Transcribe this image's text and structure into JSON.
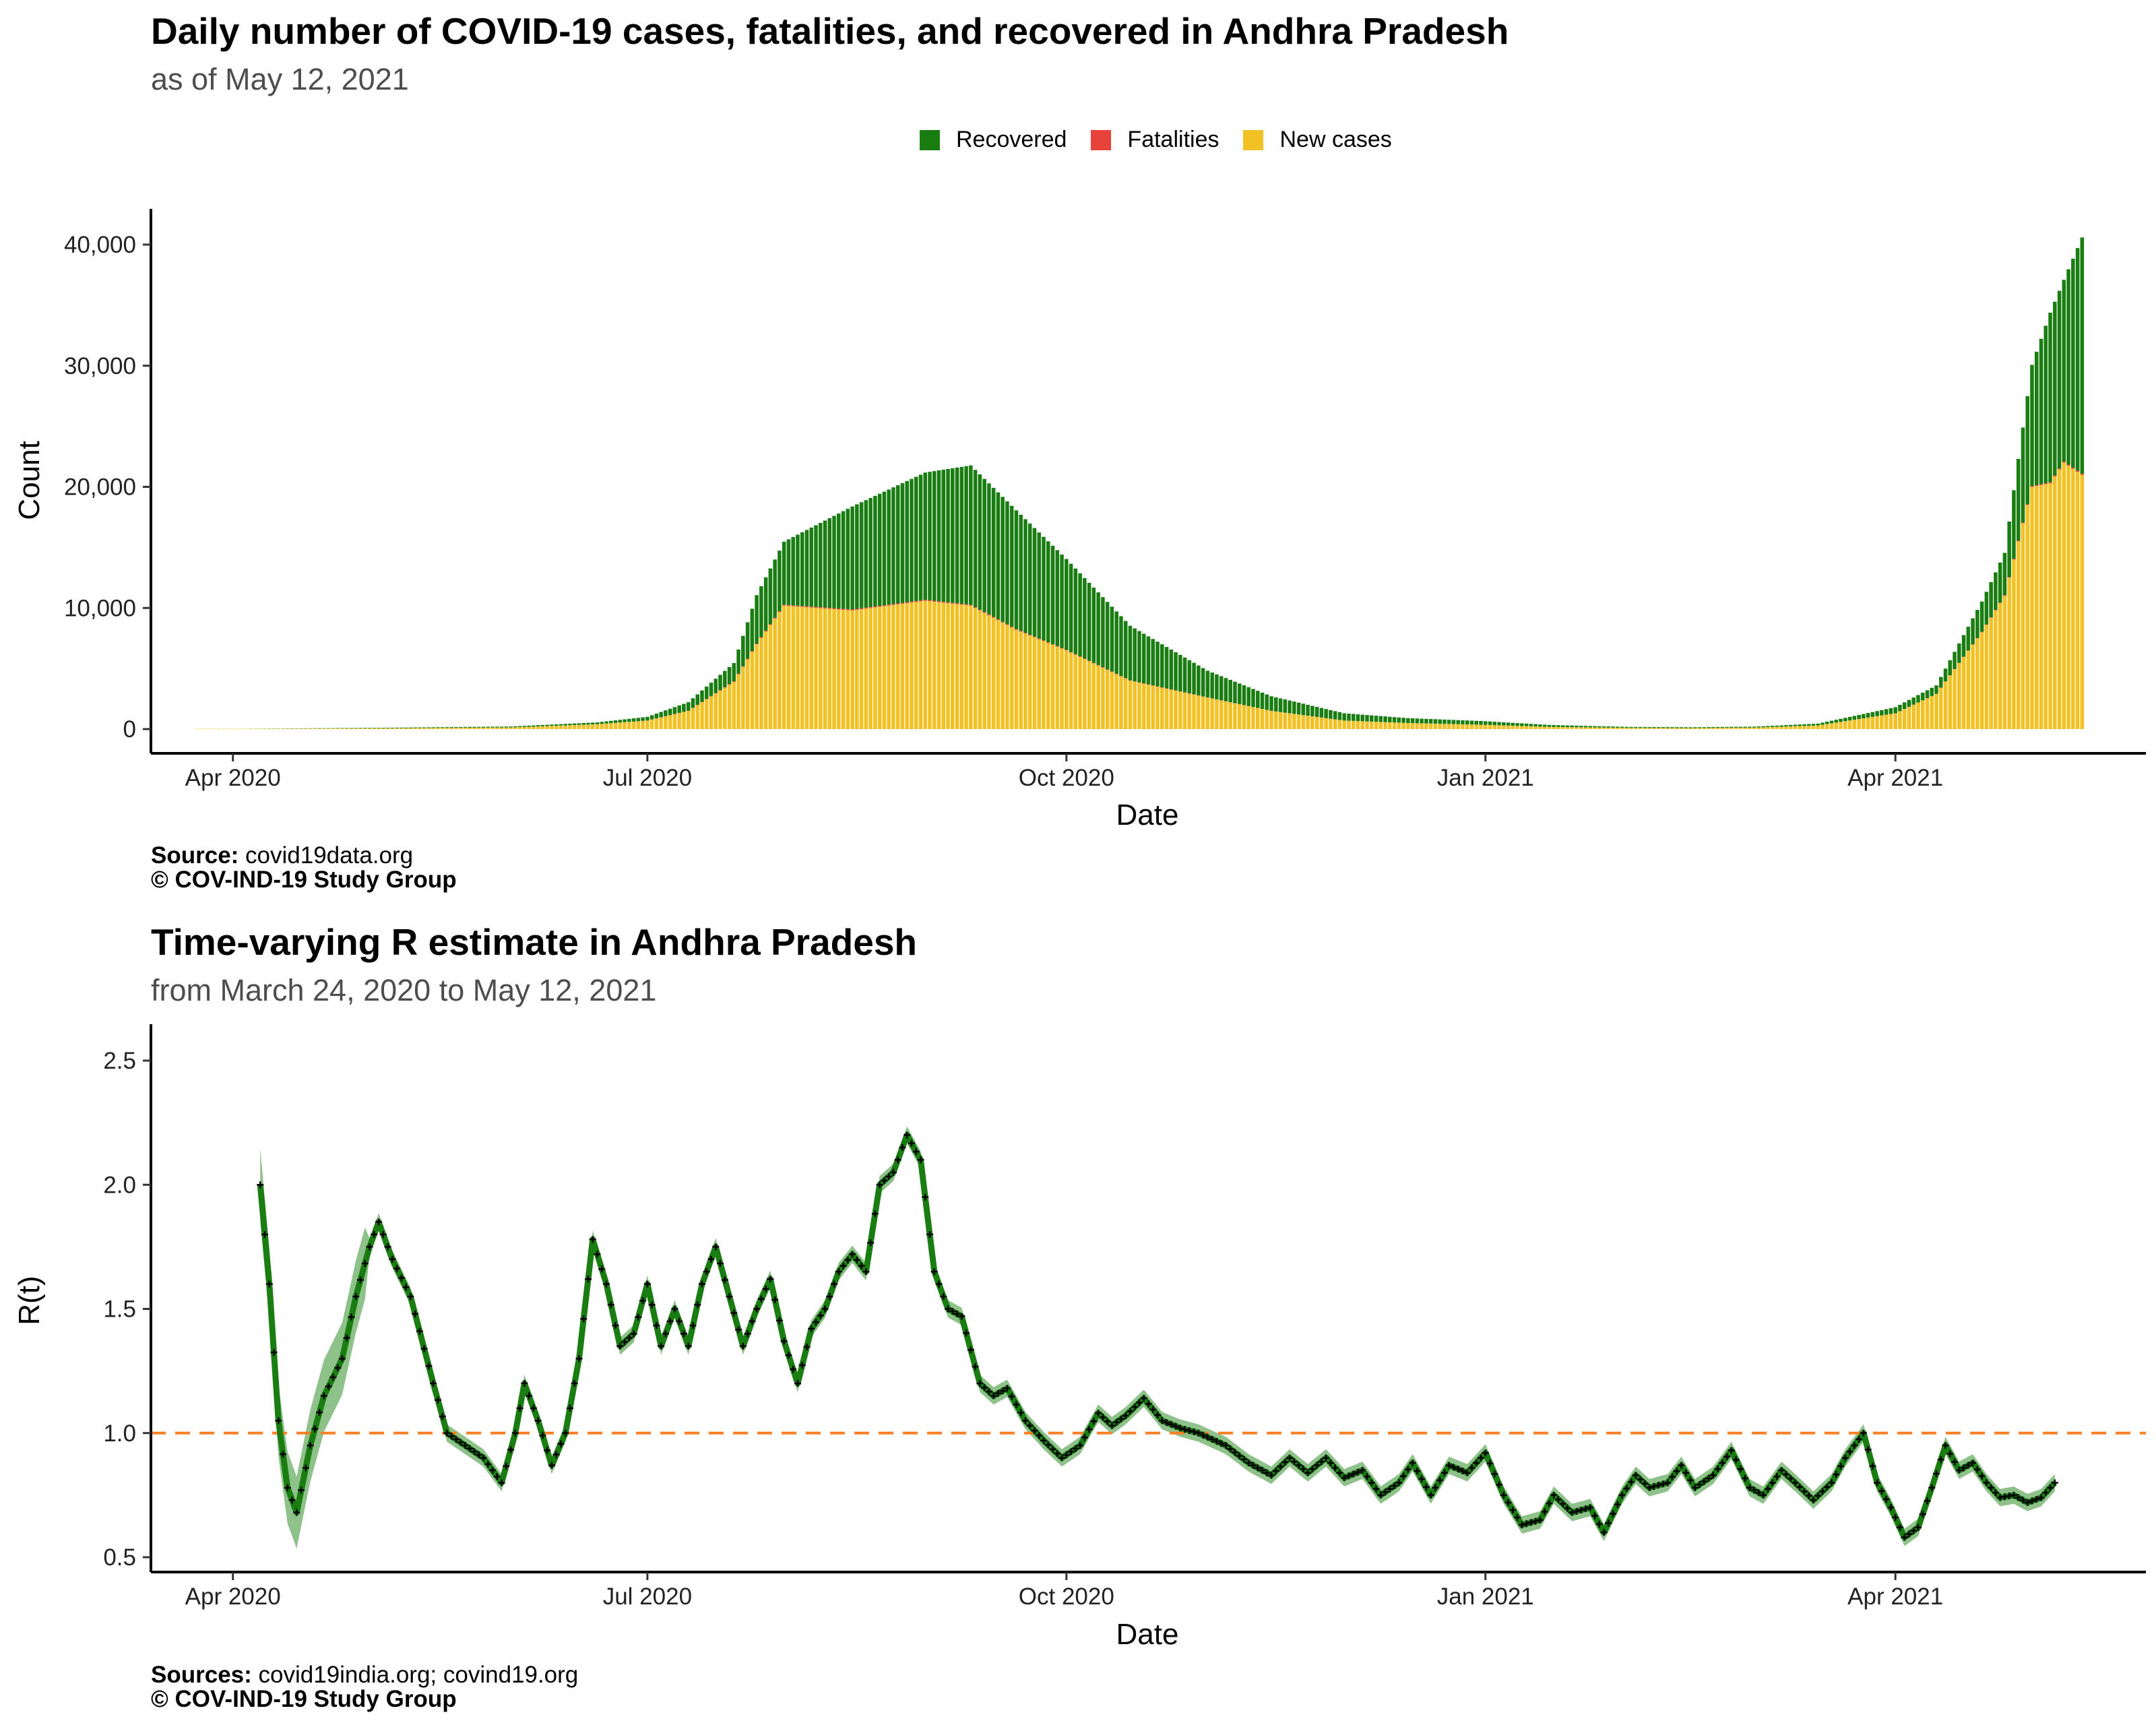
{
  "chart_data": [
    {
      "type": "bar",
      "stacked": true,
      "title": "Daily number of COVID-19 cases, fatalities, and recovered in Andhra Pradesh",
      "subtitle": "as of May 12, 2021",
      "xlabel": "Date",
      "ylabel": "Count",
      "ylim": [
        0,
        43000
      ],
      "x_range": [
        "2020-03-14",
        "2021-05-26"
      ],
      "x_ticks": [
        {
          "date": "2020-04-01",
          "label": "Apr 2020"
        },
        {
          "date": "2020-07-01",
          "label": "Jul 2020"
        },
        {
          "date": "2020-10-01",
          "label": "Oct 2020"
        },
        {
          "date": "2021-01-01",
          "label": "Jan 2021"
        },
        {
          "date": "2021-04-01",
          "label": "Apr 2021"
        }
      ],
      "y_ticks": [
        {
          "value": 0,
          "label": "0"
        },
        {
          "value": 10000,
          "label": "10,000"
        },
        {
          "value": 20000,
          "label": "20,000"
        },
        {
          "value": 30000,
          "label": "30,000"
        },
        {
          "value": 40000,
          "label": "40,000"
        }
      ],
      "grid": false,
      "legend_position": "top",
      "legend": [
        "Recovered",
        "Fatalities",
        "New cases"
      ],
      "colors": {
        "Recovered": "#1a7d12",
        "Fatalities": "#e8433a",
        "New cases": "#f2c124"
      },
      "series_key_points": [
        {
          "date": "2020-04-01",
          "new_cases": 20,
          "fatalities": 0,
          "recovered": 0
        },
        {
          "date": "2020-05-01",
          "new_cases": 60,
          "fatalities": 1,
          "recovered": 40
        },
        {
          "date": "2020-06-01",
          "new_cases": 130,
          "fatalities": 2,
          "recovered": 80
        },
        {
          "date": "2020-06-20",
          "new_cases": 400,
          "fatalities": 5,
          "recovered": 150
        },
        {
          "date": "2020-07-01",
          "new_cases": 700,
          "fatalities": 10,
          "recovered": 300
        },
        {
          "date": "2020-07-10",
          "new_cases": 1500,
          "fatalities": 20,
          "recovered": 700
        },
        {
          "date": "2020-07-20",
          "new_cases": 3900,
          "fatalities": 50,
          "recovered": 1500
        },
        {
          "date": "2020-07-25",
          "new_cases": 7000,
          "fatalities": 60,
          "recovered": 4000
        },
        {
          "date": "2020-07-31",
          "new_cases": 10200,
          "fatalities": 70,
          "recovered": 5200
        },
        {
          "date": "2020-08-15",
          "new_cases": 9800,
          "fatalities": 80,
          "recovered": 8500
        },
        {
          "date": "2020-08-31",
          "new_cases": 10600,
          "fatalities": 80,
          "recovered": 10500
        },
        {
          "date": "2020-09-10",
          "new_cases": 10200,
          "fatalities": 70,
          "recovered": 11500
        },
        {
          "date": "2020-09-20",
          "new_cases": 8200,
          "fatalities": 60,
          "recovered": 9800
        },
        {
          "date": "2020-10-01",
          "new_cases": 6500,
          "fatalities": 45,
          "recovered": 7500
        },
        {
          "date": "2020-10-15",
          "new_cases": 4000,
          "fatalities": 30,
          "recovered": 4500
        },
        {
          "date": "2020-11-01",
          "new_cases": 2600,
          "fatalities": 18,
          "recovered": 2200
        },
        {
          "date": "2020-11-15",
          "new_cases": 1500,
          "fatalities": 10,
          "recovered": 1200
        },
        {
          "date": "2020-12-01",
          "new_cases": 700,
          "fatalities": 5,
          "recovered": 600
        },
        {
          "date": "2020-12-15",
          "new_cases": 500,
          "fatalities": 3,
          "recovered": 400
        },
        {
          "date": "2021-01-01",
          "new_cases": 350,
          "fatalities": 2,
          "recovered": 300
        },
        {
          "date": "2021-01-15",
          "new_cases": 180,
          "fatalities": 1,
          "recovered": 160
        },
        {
          "date": "2021-02-01",
          "new_cases": 100,
          "fatalities": 1,
          "recovered": 80
        },
        {
          "date": "2021-02-15",
          "new_cases": 80,
          "fatalities": 0,
          "recovered": 70
        },
        {
          "date": "2021-03-01",
          "new_cases": 120,
          "fatalities": 0,
          "recovered": 80
        },
        {
          "date": "2021-03-15",
          "new_cases": 300,
          "fatalities": 1,
          "recovered": 150
        },
        {
          "date": "2021-04-01",
          "new_cases": 1300,
          "fatalities": 5,
          "recovered": 500
        },
        {
          "date": "2021-04-10",
          "new_cases": 2900,
          "fatalities": 10,
          "recovered": 700
        },
        {
          "date": "2021-04-20",
          "new_cases": 8000,
          "fatalities": 30,
          "recovered": 2500
        },
        {
          "date": "2021-04-25",
          "new_cases": 11000,
          "fatalities": 50,
          "recovered": 3500
        },
        {
          "date": "2021-05-01",
          "new_cases": 20000,
          "fatalities": 70,
          "recovered": 10000
        },
        {
          "date": "2021-05-05",
          "new_cases": 20300,
          "fatalities": 80,
          "recovered": 14000
        },
        {
          "date": "2021-05-08",
          "new_cases": 22000,
          "fatalities": 90,
          "recovered": 15000
        },
        {
          "date": "2021-05-12",
          "new_cases": 21000,
          "fatalities": 90,
          "recovered": 19500
        }
      ],
      "source_label": "Source:",
      "source_text": "covid19data.org",
      "copyright": "© COV-IND-19 Study Group"
    },
    {
      "type": "line",
      "title": "Time-varying R estimate in Andhra Pradesh",
      "subtitle": "from March 24, 2020 to May 12, 2021",
      "xlabel": "Date",
      "ylabel": "R(t)",
      "ylim": [
        0.44,
        2.6
      ],
      "x_range": [
        "2020-03-14",
        "2021-05-26"
      ],
      "x_ticks": [
        {
          "date": "2020-04-01",
          "label": "Apr 2020"
        },
        {
          "date": "2020-07-01",
          "label": "Jul 2020"
        },
        {
          "date": "2020-10-01",
          "label": "Oct 2020"
        },
        {
          "date": "2021-01-01",
          "label": "Jan 2021"
        },
        {
          "date": "2021-04-01",
          "label": "Apr 2021"
        }
      ],
      "y_ticks": [
        {
          "value": 0.5,
          "label": "0.5"
        },
        {
          "value": 1.0,
          "label": "1.0"
        },
        {
          "value": 1.5,
          "label": "1.5"
        },
        {
          "value": 2.0,
          "label": "2.0"
        },
        {
          "value": 2.5,
          "label": "2.5"
        }
      ],
      "reference_line": 1.0,
      "grid": false,
      "colors": {
        "line": "#1a7d12",
        "ribbon": "#8fc28a",
        "reference": "#ff7f24",
        "points": "#000000"
      },
      "series_key_points": [
        {
          "date": "2020-04-07",
          "r": 2.0
        },
        {
          "date": "2020-04-09",
          "r": 1.6
        },
        {
          "date": "2020-04-11",
          "r": 1.05
        },
        {
          "date": "2020-04-13",
          "r": 0.78
        },
        {
          "date": "2020-04-15",
          "r": 0.68
        },
        {
          "date": "2020-04-18",
          "r": 0.95
        },
        {
          "date": "2020-04-21",
          "r": 1.15
        },
        {
          "date": "2020-04-25",
          "r": 1.3
        },
        {
          "date": "2020-04-28",
          "r": 1.55
        },
        {
          "date": "2020-05-01",
          "r": 1.75
        },
        {
          "date": "2020-05-03",
          "r": 1.85
        },
        {
          "date": "2020-05-06",
          "r": 1.7
        },
        {
          "date": "2020-05-10",
          "r": 1.55
        },
        {
          "date": "2020-05-15",
          "r": 1.2
        },
        {
          "date": "2020-05-18",
          "r": 1.0
        },
        {
          "date": "2020-05-22",
          "r": 0.95
        },
        {
          "date": "2020-05-26",
          "r": 0.9
        },
        {
          "date": "2020-05-30",
          "r": 0.8
        },
        {
          "date": "2020-06-02",
          "r": 1.0
        },
        {
          "date": "2020-06-04",
          "r": 1.2
        },
        {
          "date": "2020-06-07",
          "r": 1.05
        },
        {
          "date": "2020-06-10",
          "r": 0.87
        },
        {
          "date": "2020-06-13",
          "r": 1.0
        },
        {
          "date": "2020-06-16",
          "r": 1.3
        },
        {
          "date": "2020-06-19",
          "r": 1.78
        },
        {
          "date": "2020-06-22",
          "r": 1.6
        },
        {
          "date": "2020-06-25",
          "r": 1.35
        },
        {
          "date": "2020-06-28",
          "r": 1.4
        },
        {
          "date": "2020-07-01",
          "r": 1.6
        },
        {
          "date": "2020-07-04",
          "r": 1.35
        },
        {
          "date": "2020-07-07",
          "r": 1.5
        },
        {
          "date": "2020-07-10",
          "r": 1.35
        },
        {
          "date": "2020-07-13",
          "r": 1.6
        },
        {
          "date": "2020-07-16",
          "r": 1.75
        },
        {
          "date": "2020-07-19",
          "r": 1.55
        },
        {
          "date": "2020-07-22",
          "r": 1.35
        },
        {
          "date": "2020-07-25",
          "r": 1.5
        },
        {
          "date": "2020-07-28",
          "r": 1.62
        },
        {
          "date": "2020-07-31",
          "r": 1.37
        },
        {
          "date": "2020-08-03",
          "r": 1.2
        },
        {
          "date": "2020-08-06",
          "r": 1.42
        },
        {
          "date": "2020-08-09",
          "r": 1.5
        },
        {
          "date": "2020-08-12",
          "r": 1.65
        },
        {
          "date": "2020-08-15",
          "r": 1.72
        },
        {
          "date": "2020-08-18",
          "r": 1.65
        },
        {
          "date": "2020-08-21",
          "r": 2.0
        },
        {
          "date": "2020-08-24",
          "r": 2.05
        },
        {
          "date": "2020-08-27",
          "r": 2.2
        },
        {
          "date": "2020-08-30",
          "r": 2.1
        },
        {
          "date": "2020-09-02",
          "r": 1.65
        },
        {
          "date": "2020-09-05",
          "r": 1.5
        },
        {
          "date": "2020-09-08",
          "r": 1.47
        },
        {
          "date": "2020-09-12",
          "r": 1.2
        },
        {
          "date": "2020-09-15",
          "r": 1.15
        },
        {
          "date": "2020-09-18",
          "r": 1.18
        },
        {
          "date": "2020-09-22",
          "r": 1.05
        },
        {
          "date": "2020-09-26",
          "r": 0.97
        },
        {
          "date": "2020-09-30",
          "r": 0.9
        },
        {
          "date": "2020-10-04",
          "r": 0.95
        },
        {
          "date": "2020-10-08",
          "r": 1.08
        },
        {
          "date": "2020-10-11",
          "r": 1.03
        },
        {
          "date": "2020-10-14",
          "r": 1.07
        },
        {
          "date": "2020-10-18",
          "r": 1.14
        },
        {
          "date": "2020-10-22",
          "r": 1.05
        },
        {
          "date": "2020-10-26",
          "r": 1.02
        },
        {
          "date": "2020-10-30",
          "r": 1.0
        },
        {
          "date": "2020-11-05",
          "r": 0.95
        },
        {
          "date": "2020-11-10",
          "r": 0.88
        },
        {
          "date": "2020-11-15",
          "r": 0.83
        },
        {
          "date": "2020-11-19",
          "r": 0.9
        },
        {
          "date": "2020-11-23",
          "r": 0.84
        },
        {
          "date": "2020-11-27",
          "r": 0.9
        },
        {
          "date": "2020-12-01",
          "r": 0.82
        },
        {
          "date": "2020-12-05",
          "r": 0.85
        },
        {
          "date": "2020-12-09",
          "r": 0.75
        },
        {
          "date": "2020-12-13",
          "r": 0.8
        },
        {
          "date": "2020-12-16",
          "r": 0.88
        },
        {
          "date": "2020-12-20",
          "r": 0.75
        },
        {
          "date": "2020-12-24",
          "r": 0.87
        },
        {
          "date": "2020-12-28",
          "r": 0.84
        },
        {
          "date": "2021-01-01",
          "r": 0.92
        },
        {
          "date": "2021-01-05",
          "r": 0.75
        },
        {
          "date": "2021-01-09",
          "r": 0.63
        },
        {
          "date": "2021-01-13",
          "r": 0.65
        },
        {
          "date": "2021-01-16",
          "r": 0.75
        },
        {
          "date": "2021-01-20",
          "r": 0.68
        },
        {
          "date": "2021-01-24",
          "r": 0.7
        },
        {
          "date": "2021-01-27",
          "r": 0.6
        },
        {
          "date": "2021-01-31",
          "r": 0.75
        },
        {
          "date": "2021-02-03",
          "r": 0.83
        },
        {
          "date": "2021-02-06",
          "r": 0.78
        },
        {
          "date": "2021-02-10",
          "r": 0.8
        },
        {
          "date": "2021-02-13",
          "r": 0.87
        },
        {
          "date": "2021-02-16",
          "r": 0.78
        },
        {
          "date": "2021-02-20",
          "r": 0.83
        },
        {
          "date": "2021-02-24",
          "r": 0.93
        },
        {
          "date": "2021-02-28",
          "r": 0.78
        },
        {
          "date": "2021-03-03",
          "r": 0.75
        },
        {
          "date": "2021-03-07",
          "r": 0.85
        },
        {
          "date": "2021-03-10",
          "r": 0.8
        },
        {
          "date": "2021-03-14",
          "r": 0.73
        },
        {
          "date": "2021-03-18",
          "r": 0.8
        },
        {
          "date": "2021-03-21",
          "r": 0.9
        },
        {
          "date": "2021-03-25",
          "r": 1.0
        },
        {
          "date": "2021-03-28",
          "r": 0.8
        },
        {
          "date": "2021-03-31",
          "r": 0.7
        },
        {
          "date": "2021-04-03",
          "r": 0.58
        },
        {
          "date": "2021-04-06",
          "r": 0.62
        },
        {
          "date": "2021-04-09",
          "r": 0.78
        },
        {
          "date": "2021-04-12",
          "r": 0.95
        },
        {
          "date": "2021-04-15",
          "r": 0.85
        },
        {
          "date": "2021-04-18",
          "r": 0.88
        },
        {
          "date": "2021-04-21",
          "r": 0.8
        },
        {
          "date": "2021-04-24",
          "r": 0.74
        },
        {
          "date": "2021-04-27",
          "r": 0.75
        },
        {
          "date": "2021-04-30",
          "r": 0.72
        },
        {
          "date": "2021-05-03",
          "r": 0.74
        },
        {
          "date": "2021-05-06",
          "r": 0.8
        }
      ],
      "source_label": "Sources:",
      "source_text": "covid19india.org; covind19.org",
      "copyright": "© COV-IND-19 Study Group"
    }
  ]
}
